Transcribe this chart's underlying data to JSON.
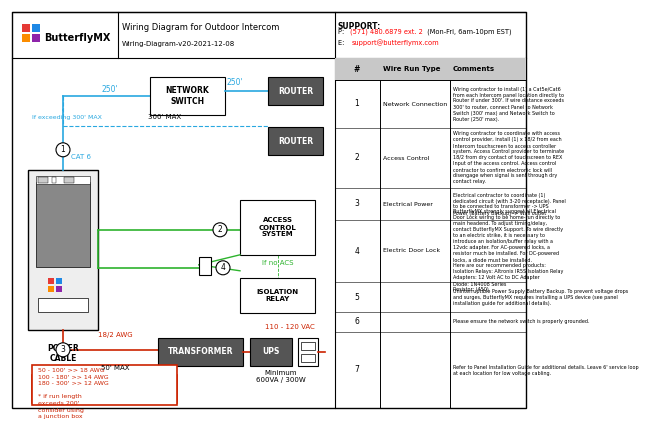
{
  "title": "Wiring Diagram for Outdoor Intercom",
  "subtitle": "Wiring-Diagram-v20-2021-12-08",
  "support_title": "SUPPORT:",
  "support_phone_prefix": "P: ",
  "support_phone_red": "(571) 480.6879 ext. 2",
  "support_phone_suffix": " (Mon-Fri, 6am-10pm EST)",
  "support_email_prefix": "E:  ",
  "support_email_red": "support@butterflymx.com",
  "logo_text": "ButterflyMX",
  "logo_colors": [
    "#e53935",
    "#1e88e5",
    "#fb8c00",
    "#8e24aa"
  ],
  "bg_color": "#ffffff",
  "cat6_color": "#29a8e0",
  "green_color": "#2db32d",
  "red_color": "#cc2200",
  "dark_color": "#555555",
  "table_header_bg": "#c8c8c8",
  "table_rows": [
    {
      "num": "1",
      "type": "Network Connection",
      "comment": "Wiring contractor to install (1) a Cat5e/Cat6\nfrom each Intercom panel location directly to\nRouter if under 300'. If wire distance exceeds\n300' to router, connect Panel to Network\nSwitch (300' max) and Network Switch to\nRouter (250' max)."
    },
    {
      "num": "2",
      "type": "Access Control",
      "comment": "Wiring contractor to coordinate with access\ncontrol provider, install (1) x 18/2 from each\nIntercom touchscreen to access controller\nsystem. Access Control provider to terminate\n18/2 from dry contact of touchscreen to REX\nInput of the access control. Access control\ncontractor to confirm electronic lock will\ndisengage when signal is sent through dry\ncontact relay."
    },
    {
      "num": "3",
      "type": "Electrical Power",
      "comment": "Electrical contractor to coordinate (1)\ndedicated circuit (with 3-20 receptacle). Panel\nto be connected to transformer -> UPS\nPower (Battery Backup) -> Wall outlet"
    },
    {
      "num": "4",
      "type": "Electric Door Lock",
      "comment": "ButterflyMX strongly suggest all Electrical\nDoor Lock wiring to be home-run directly to\nmain headend. To adjust timing/delay,\ncontact ButterflyMX Support. To wire directly\nto an electric strike, it is necessary to\nintroduce an isolation/buffer relay with a\n12vdc adapter. For AC-powered locks, a\nresistor much be installed. For DC-powered\nlocks, a diode must be installed.\nHere are our recommended products:\nIsolation Relays: Altronix IR5S Isolation Relay\nAdapters: 12 Volt AC to DC Adapter\nDiode: 1N4008 Series\nResistor: (450)"
    },
    {
      "num": "5",
      "type": "",
      "comment": "Uninterruptible Power Supply Battery Backup. To prevent voltage drops\nand surges, ButterflyMX requires installing a UPS device (see panel\ninstallation guide for additional details)."
    },
    {
      "num": "6",
      "type": "",
      "comment": "Please ensure the network switch is properly grounded."
    },
    {
      "num": "7",
      "type": "",
      "comment": "Refer to Panel Installation Guide for additional details. Leave 6' service loop\nat each location for low voltage cabling."
    }
  ]
}
